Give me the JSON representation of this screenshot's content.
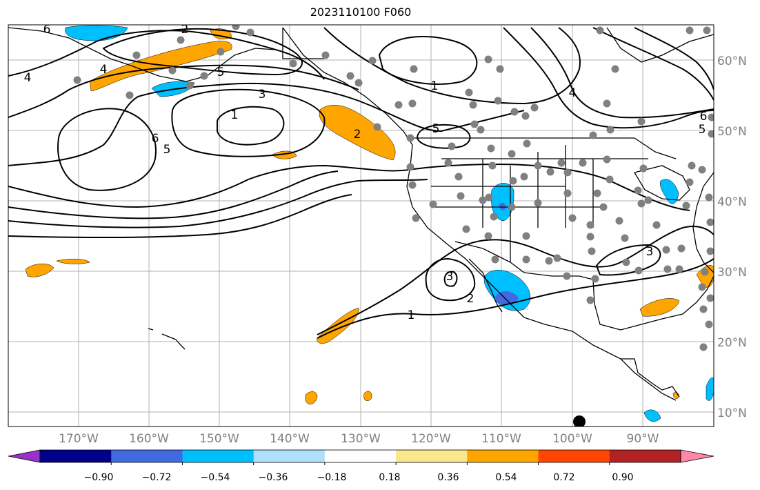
{
  "title": "2023110100 F060",
  "map": {
    "lat_labels": [
      "60°N",
      "50°N",
      "40°N",
      "30°N",
      "20°N",
      "10°N"
    ],
    "lon_labels": [
      "170°W",
      "160°W",
      "150°W",
      "140°W",
      "130°W",
      "120°W",
      "110°W",
      "100°W",
      "90°W"
    ],
    "contour_labels": [
      "1",
      "1",
      "1",
      "2",
      "2",
      "2",
      "3",
      "3",
      "3",
      "4",
      "4",
      "4",
      "5",
      "5",
      "5",
      "5",
      "6",
      "6",
      "6"
    ],
    "colors": {
      "positive": "#FFA500",
      "negative": "#00BFFF",
      "strong_negative": "#4169E1",
      "contour": "#000000",
      "station": "#808080",
      "grid": "#b0b0b0"
    }
  },
  "colorbar": {
    "tick_labels": [
      "−0.90",
      "−0.72",
      "−0.54",
      "−0.36",
      "−0.18",
      "0.18",
      "0.36",
      "0.54",
      "0.72",
      "0.90"
    ],
    "colors": [
      "#9932CC",
      "#00008B",
      "#4169E1",
      "#00BFFF",
      "#B0E0FA",
      "#FFFFFF",
      "#FAE68C",
      "#FFA500",
      "#FF4500",
      "#B22222",
      "#FF88AA"
    ]
  }
}
